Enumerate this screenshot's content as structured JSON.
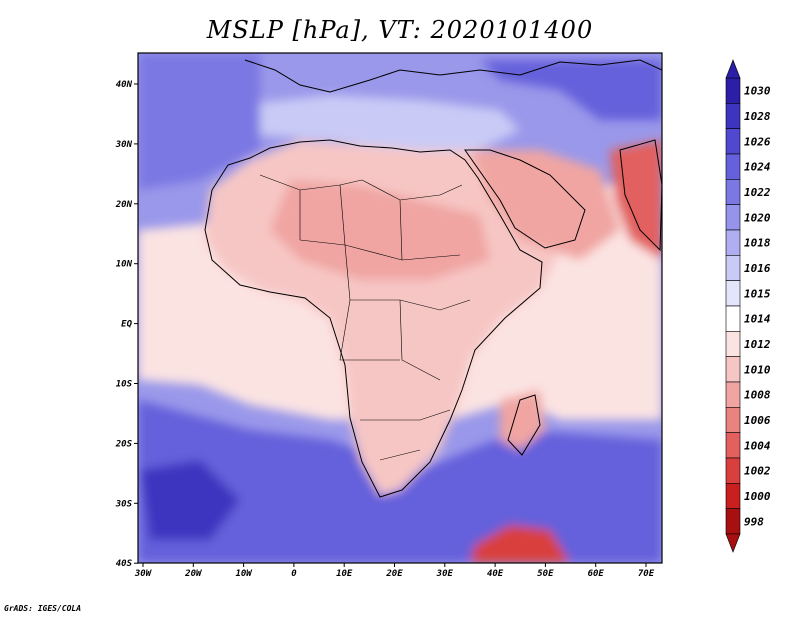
{
  "title": "MSLP [hPa], VT: 2020101400",
  "credit": "GrADS: IGES/COLA",
  "lon_ticks": [
    "30W",
    "20W",
    "10W",
    "0",
    "10E",
    "20E",
    "30E",
    "40E",
    "50E",
    "60E",
    "70E"
  ],
  "lat_ticks": [
    "40N",
    "30N",
    "20N",
    "10N",
    "EQ",
    "10S",
    "20S",
    "30S",
    "40S"
  ],
  "colorbar": {
    "labels": [
      "1030",
      "1028",
      "1026",
      "1024",
      "1022",
      "1020",
      "1018",
      "1016",
      "1015",
      "1014",
      "1012",
      "1010",
      "1008",
      "1006",
      "1004",
      "1002",
      "1000",
      "998"
    ],
    "colors": [
      "#2a1fa6",
      "#3d35bf",
      "#5048cf",
      "#6560db",
      "#7b78e3",
      "#9593ea",
      "#aeaef0",
      "#c9cbf6",
      "#e3e6fb",
      "#ffffff",
      "#fbe3e2",
      "#f6c6c4",
      "#f0a5a2",
      "#e98380",
      "#e2605e",
      "#d93f3d",
      "#c9201f",
      "#a80f10"
    ]
  },
  "map": {
    "region": "Africa and surrounding oceans, 30W–75E, 40S–44N",
    "fields": {
      "background": "#9a98ea",
      "ocean_south": "#6560db",
      "equatorial_ocean": "#fbe3e2",
      "land_africa": "#f6c6c4",
      "sahara_low": "#f0a5a2",
      "arabia_low": "#f0a5a2",
      "india_low": "#e2605e",
      "madagascar_low": "#f0a5a2",
      "south_ocean_low": "#d93f3d",
      "south_atlantic_high": "#3d35bf"
    }
  }
}
